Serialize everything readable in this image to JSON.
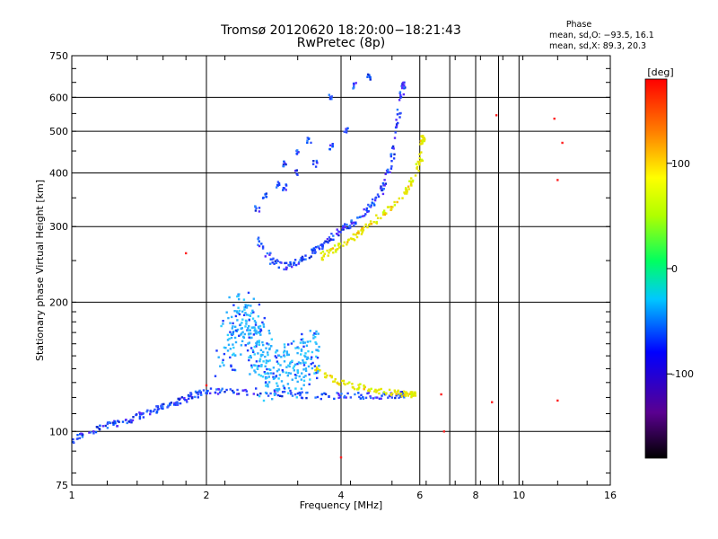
{
  "chart_data": {
    "type": "scatter",
    "title": "Tromsø 20120620 18:20:00−18:21:43",
    "subtitle": "RwPretec (8p)",
    "xlabel": "Frequency [MHz]",
    "ylabel": "Stationary phase Virtual Height [km]",
    "xscale": "log",
    "yscale": "log",
    "xlim": [
      1,
      16
    ],
    "ylim": [
      75,
      750
    ],
    "xticks": [
      1,
      2,
      4,
      6,
      8,
      10,
      16
    ],
    "yticks": [
      75,
      100,
      200,
      300,
      400,
      500,
      600,
      750
    ],
    "grid": true,
    "stats": {
      "header": "Phase",
      "o_mode": "mean, sd,O: −93.5, 16.1",
      "x_mode": "mean, sd,X:  89.3, 20.3"
    },
    "colorbar": {
      "label": "[deg]",
      "ticks": [
        100,
        0,
        -100
      ],
      "range": [
        -180,
        180
      ]
    },
    "series": [
      {
        "name": "O-trace low (phase ~ -100 deg)",
        "color": "#1f3cff",
        "points": [
          [
            1.0,
            95
          ],
          [
            1.1,
            100
          ],
          [
            1.2,
            103
          ],
          [
            1.3,
            105
          ],
          [
            1.4,
            108
          ],
          [
            1.5,
            111
          ],
          [
            1.6,
            114
          ],
          [
            1.7,
            116
          ],
          [
            1.8,
            119
          ],
          [
            1.9,
            122
          ],
          [
            2.0,
            124
          ],
          [
            2.2,
            124
          ],
          [
            2.5,
            123
          ],
          [
            3.0,
            122
          ],
          [
            3.5,
            121
          ],
          [
            4.0,
            121
          ],
          [
            4.5,
            121
          ],
          [
            5.0,
            121
          ],
          [
            5.5,
            122
          ]
        ]
      },
      {
        "name": "O-trace F-layer (phase ~ -100 deg)",
        "color": "#1f3cff",
        "points": [
          [
            2.6,
            280
          ],
          [
            2.8,
            250
          ],
          [
            3.0,
            242
          ],
          [
            3.2,
            248
          ],
          [
            3.4,
            258
          ],
          [
            3.6,
            270
          ],
          [
            3.8,
            282
          ],
          [
            4.0,
            295
          ],
          [
            4.2,
            303
          ],
          [
            4.5,
            322
          ],
          [
            4.8,
            345
          ],
          [
            5.0,
            375
          ],
          [
            5.2,
            430
          ],
          [
            5.35,
            520
          ],
          [
            5.5,
            640
          ]
        ]
      },
      {
        "name": "X-trace F-layer (phase ~ 100 deg)",
        "color": "#e6e600",
        "points": [
          [
            3.6,
            255
          ],
          [
            3.8,
            263
          ],
          [
            4.0,
            272
          ],
          [
            4.3,
            285
          ],
          [
            4.6,
            302
          ],
          [
            5.0,
            322
          ],
          [
            5.4,
            345
          ],
          [
            5.7,
            375
          ],
          [
            6.0,
            420
          ],
          [
            6.1,
            480
          ]
        ]
      },
      {
        "name": "X-trace E-layer (phase ~ 100 deg)",
        "color": "#e6e600",
        "points": [
          [
            3.5,
            140
          ],
          [
            3.8,
            133
          ],
          [
            4.1,
            129
          ],
          [
            4.5,
            126
          ],
          [
            5.0,
            124
          ],
          [
            5.5,
            122
          ],
          [
            5.8,
            122
          ]
        ]
      },
      {
        "name": "Spread echoes (phase ~ -50 deg)",
        "color": "#2ab0ff",
        "points": [
          [
            2.2,
            150
          ],
          [
            2.3,
            170
          ],
          [
            2.4,
            190
          ],
          [
            2.5,
            175
          ],
          [
            2.6,
            160
          ],
          [
            2.7,
            145
          ],
          [
            2.8,
            135
          ],
          [
            3.0,
            140
          ],
          [
            3.2,
            138
          ],
          [
            3.4,
            150
          ]
        ]
      },
      {
        "name": "Upper oblique trace (phase ~ -100 deg)",
        "color": "#1f3cff",
        "points": [
          [
            3.0,
            420
          ],
          [
            3.2,
            445
          ],
          [
            3.4,
            475
          ],
          [
            3.8,
            600
          ],
          [
            4.3,
            640
          ],
          [
            4.6,
            670
          ],
          [
            3.0,
            370
          ],
          [
            3.2,
            400
          ],
          [
            3.5,
            420
          ],
          [
            3.8,
            460
          ],
          [
            4.1,
            500
          ],
          [
            2.6,
            330
          ],
          [
            2.7,
            355
          ],
          [
            2.9,
            375
          ]
        ]
      },
      {
        "name": "Scattered points",
        "color": "#ff2020",
        "points": [
          [
            1.8,
            260
          ],
          [
            2.0,
            128
          ],
          [
            6.7,
            122
          ],
          [
            8.7,
            117
          ],
          [
            8.9,
            545
          ],
          [
            12.0,
            535
          ],
          [
            12.2,
            118
          ],
          [
            12.5,
            470
          ],
          [
            12.2,
            385
          ],
          [
            4.0,
            87
          ],
          [
            6.8,
            100
          ]
        ]
      }
    ]
  }
}
